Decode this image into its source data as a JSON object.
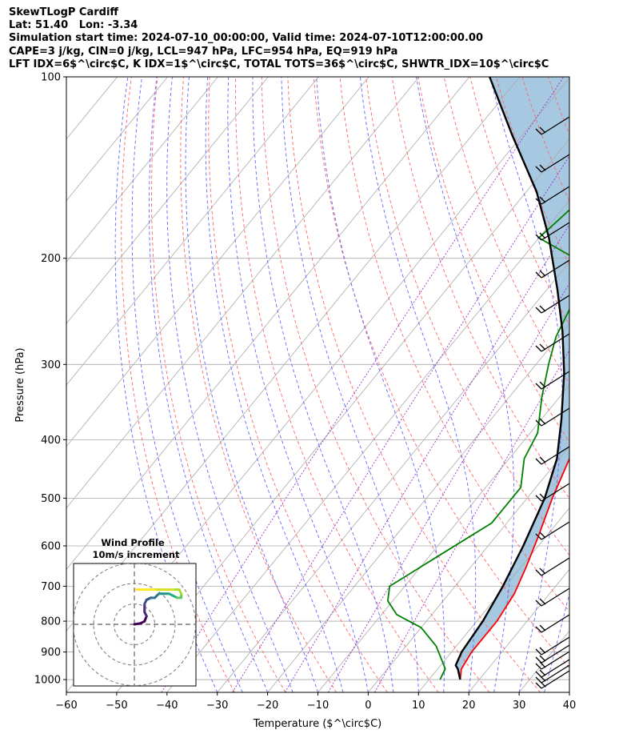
{
  "header": {
    "line1": "SkewTLogP Cardiff",
    "line2": "Lat: 51.40   Lon: -3.34",
    "line3": "Simulation start time: 2024-07-10_00:00:00, Valid time: 2024-07-10T12:00:00.00",
    "line4": "CAPE=3 j/kg, CIN=0 j/kg, LCL=947 hPa, LFC=954 hPa, EQ=919 hPa",
    "line5": "LFT IDX=6$^\\circ$C, K IDX=1$^\\circ$C, TOTAL TOTS=36$^\\circ$C, SHWTR_IDX=10$^\\circ$C"
  },
  "chart_data": {
    "type": "line",
    "title": "SkewTLogP Cardiff",
    "xlabel": "Temperature ($^\\circ$C)",
    "ylabel": "Pressure (hPa)",
    "xlim": [
      -60,
      40
    ],
    "ylim": [
      1050,
      100
    ],
    "y_scale": "log",
    "x_ticks": [
      "−60",
      "−50",
      "−40",
      "−30",
      "−20",
      "−10",
      "0",
      "10",
      "20",
      "30",
      "40"
    ],
    "y_ticks": [
      "100",
      "200",
      "300",
      "400",
      "500",
      "600",
      "700",
      "800",
      "900",
      "1000"
    ],
    "grid": true,
    "colors": {
      "temperature": "#ff0000",
      "dewpoint": "#008000",
      "parcel": "#000000",
      "cape_fill": "#a6c8e0",
      "dry_adiabats": "#ff6666",
      "moist_adiabats": "#6666ff",
      "mixing_ratio": "#9933cc",
      "isotherms": "#aaaaaa"
    },
    "series": [
      {
        "name": "Temperature",
        "points": [
          [
            16.2,
            1000
          ],
          [
            14.7,
            960
          ],
          [
            14.0,
            900
          ],
          [
            14.0,
            800
          ],
          [
            13.0,
            720
          ],
          [
            11.0,
            650
          ],
          [
            8.5,
            580
          ],
          [
            5.0,
            500
          ],
          [
            2.0,
            430
          ],
          [
            -1.5,
            370
          ],
          [
            -4.0,
            330
          ],
          [
            -6.5,
            290
          ],
          [
            -8.0,
            260
          ],
          [
            -7.0,
            240
          ],
          [
            -4.5,
            225
          ],
          [
            -1.0,
            210
          ],
          [
            2.0,
            195
          ],
          [
            4.0,
            185
          ],
          [
            6.0,
            175
          ],
          [
            7.5,
            165
          ],
          [
            8.5,
            155
          ],
          [
            9.0,
            145
          ],
          [
            9.5,
            135
          ],
          [
            10.0,
            125
          ],
          [
            10.5,
            115
          ],
          [
            11.0,
            105
          ],
          [
            11.5,
            100
          ]
        ]
      },
      {
        "name": "Dewpoint",
        "points": [
          [
            12.2,
            1000
          ],
          [
            11.5,
            960
          ],
          [
            9.5,
            930
          ],
          [
            6.0,
            880
          ],
          [
            0.0,
            820
          ],
          [
            -7.0,
            780
          ],
          [
            -11.0,
            740
          ],
          [
            -13.0,
            700
          ],
          [
            -8.0,
            620
          ],
          [
            -3.0,
            550
          ],
          [
            -3.0,
            480
          ],
          [
            -7.0,
            430
          ],
          [
            -8.5,
            390
          ],
          [
            -13.5,
            340
          ],
          [
            -17.5,
            300
          ],
          [
            -20.5,
            270
          ],
          [
            -22.5,
            240
          ],
          [
            -24.5,
            215
          ],
          [
            -29.5,
            200
          ],
          [
            -40.0,
            185
          ],
          [
            -37.0,
            150
          ],
          [
            -34.0,
            125
          ],
          [
            -30.0,
            100
          ]
        ]
      },
      {
        "name": "Parcel",
        "points": [
          [
            16.2,
            1000
          ],
          [
            14.0,
            960
          ],
          [
            13.0,
            947
          ],
          [
            12.0,
            900
          ],
          [
            11.2,
            800
          ],
          [
            9.5,
            700
          ],
          [
            7.0,
            600
          ],
          [
            3.5,
            500
          ],
          [
            -0.5,
            430
          ],
          [
            -6.0,
            370
          ],
          [
            -13.0,
            310
          ],
          [
            -20.0,
            265
          ],
          [
            -28.0,
            225
          ],
          [
            -38.0,
            185
          ],
          [
            -48.0,
            155
          ],
          [
            -62.0,
            125
          ],
          [
            -76.0,
            100
          ]
        ]
      }
    ],
    "hodograph": {
      "title_line1": "Wind Profile",
      "title_line2": "10m/s increment",
      "rings_ms": [
        10,
        20,
        30
      ],
      "points_uv": [
        [
          0,
          0
        ],
        [
          3,
          0.5
        ],
        [
          5,
          1.5
        ],
        [
          6,
          4
        ],
        [
          5,
          6
        ],
        [
          5,
          10
        ],
        [
          6,
          12
        ],
        [
          8,
          13
        ],
        [
          10,
          13
        ],
        [
          12,
          15
        ],
        [
          14,
          15
        ],
        [
          17,
          15
        ],
        [
          19,
          14
        ],
        [
          21,
          13
        ],
        [
          23,
          13
        ],
        [
          23,
          15
        ],
        [
          22,
          17
        ],
        [
          19,
          17
        ],
        [
          15,
          17
        ],
        [
          10,
          17
        ],
        [
          5,
          17
        ],
        [
          1,
          17
        ]
      ]
    },
    "wind_barbs_note": "wind barbs along right edge at each pressure level"
  }
}
